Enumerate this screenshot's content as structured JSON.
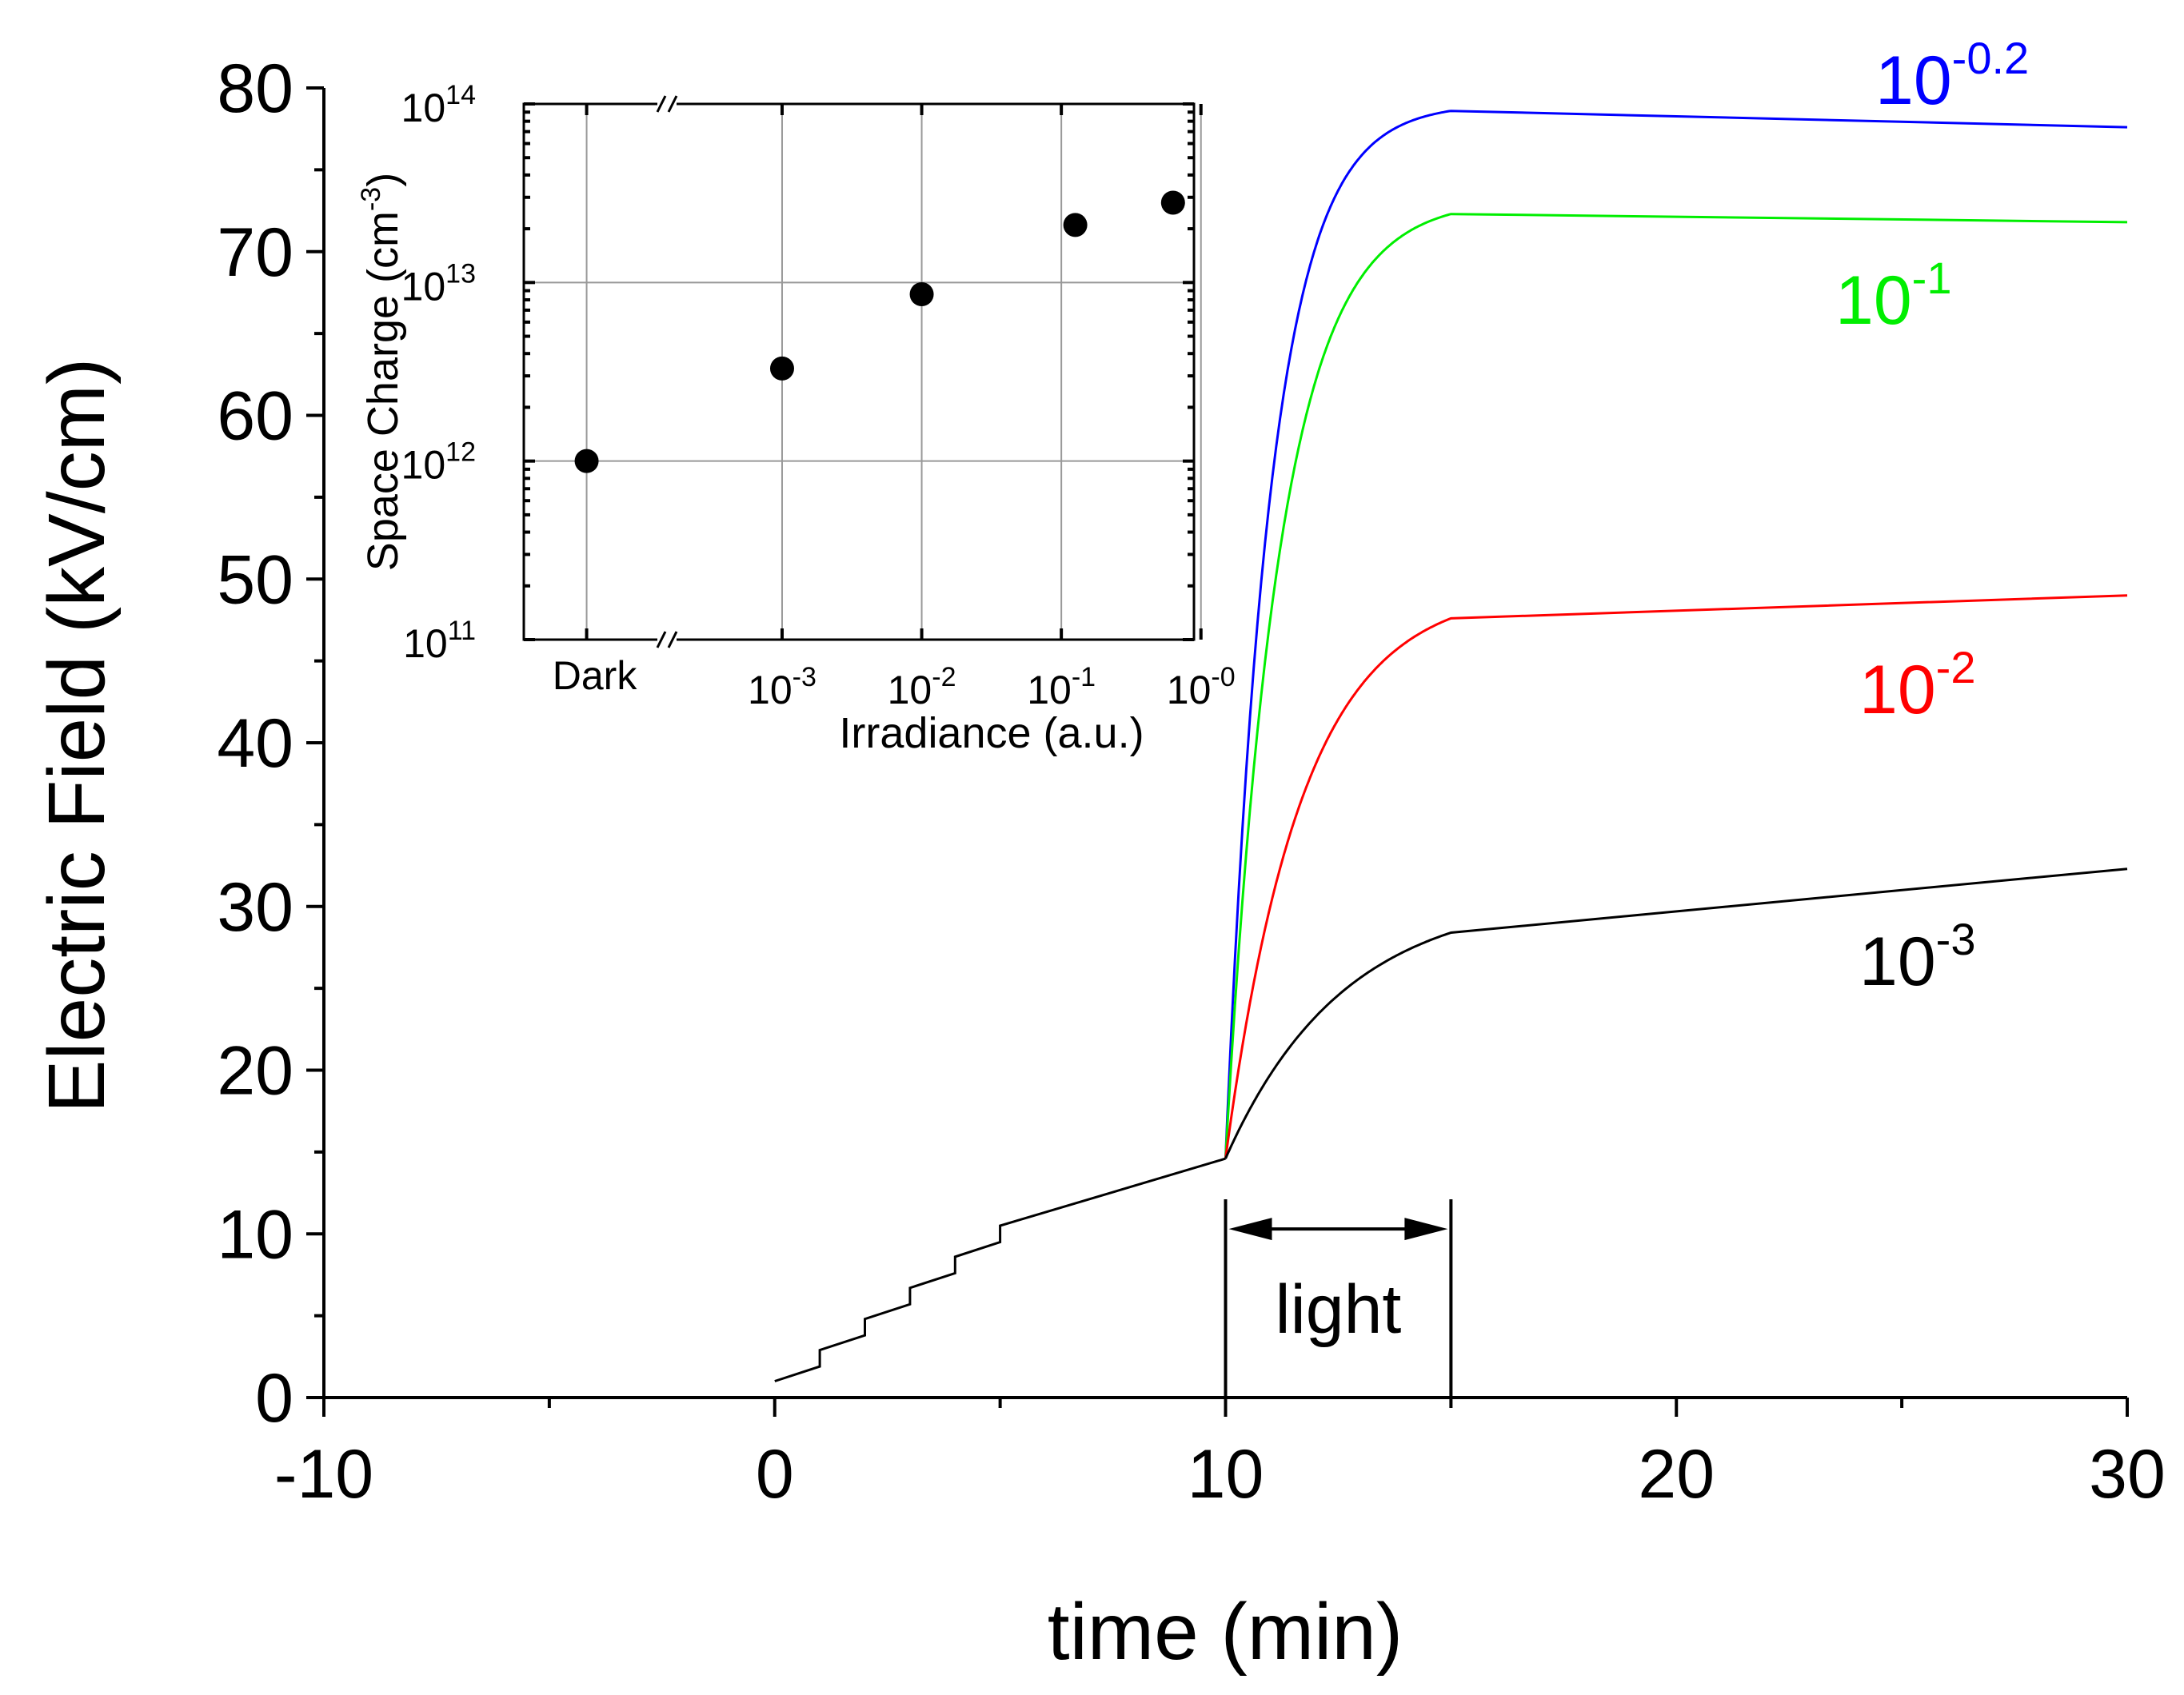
{
  "chart_data": [
    {
      "type": "line",
      "xlabel": "time (min)",
      "ylabel": "Electric Field  (kV/cm)",
      "xlim": [
        -10,
        30
      ],
      "ylim": [
        0,
        80
      ],
      "x_ticks": [
        "-10",
        "0",
        "10",
        "20",
        "30"
      ],
      "y_ticks": [
        "0",
        "10",
        "20",
        "30",
        "40",
        "50",
        "60",
        "70",
        "80"
      ],
      "dark_ramp": {
        "color": "#000000",
        "points": [
          [
            0,
            1.0
          ],
          [
            1,
            1.9
          ],
          [
            1,
            2.9
          ],
          [
            2,
            3.8
          ],
          [
            2,
            4.8
          ],
          [
            3,
            5.7
          ],
          [
            3,
            6.7
          ],
          [
            4,
            7.6
          ],
          [
            4,
            8.6
          ],
          [
            5,
            9.5
          ],
          [
            5,
            10.5
          ],
          [
            10,
            14.6
          ]
        ]
      },
      "series": [
        {
          "name": "10",
          "exponent": "-0.2",
          "color": "#0000ff",
          "light_on": {
            "x0": 10,
            "x1": 15,
            "y0": 14.6,
            "y1": 78.6,
            "tau": 1.0
          },
          "recovery_end": {
            "x": 30,
            "y": 77.6
          }
        },
        {
          "name": "10",
          "exponent": "-1",
          "color": "#00ee00",
          "light_on": {
            "x0": 10,
            "x1": 15,
            "y0": 14.6,
            "y1": 72.3,
            "tau": 1.2
          },
          "recovery_end": {
            "x": 30,
            "y": 71.8
          }
        },
        {
          "name": "10",
          "exponent": "-2",
          "color": "#ff0000",
          "light_on": {
            "x0": 10,
            "x1": 15,
            "y0": 14.6,
            "y1": 47.6,
            "tau": 1.7
          },
          "recovery_end": {
            "x": 30,
            "y": 49.0
          }
        },
        {
          "name": "10",
          "exponent": "-3",
          "color": "#000000",
          "light_on": {
            "x0": 10,
            "x1": 15,
            "y0": 14.6,
            "y1": 28.4,
            "tau": 2.6
          },
          "recovery_end": {
            "x": 30,
            "y": 32.3
          }
        }
      ],
      "annotation": {
        "text": "light",
        "x_start": 10,
        "x_end": 15,
        "arrow_y": 10.3
      }
    },
    {
      "type": "scatter",
      "inset": true,
      "xlabel": "Irradiance  (a.u.)",
      "ylabel_main": "Space Charge  (cm",
      "ylabel_exp": "-3",
      "ylabel_close": ")",
      "yscale": "log",
      "ylim": [
        100000000000.0,
        100000000000000.0
      ],
      "y_ticks": [
        {
          "base": "10",
          "exp": "11",
          "value": 11
        },
        {
          "base": "10",
          "exp": "12",
          "value": 12
        },
        {
          "base": "10",
          "exp": "13",
          "value": 13
        },
        {
          "base": "10",
          "exp": "14",
          "value": 14
        }
      ],
      "x_categories": [
        {
          "label": "Dark",
          "pos": -4.4
        },
        {
          "base": "10",
          "exp": "-3",
          "pos": -3
        },
        {
          "base": "10",
          "exp": "-2",
          "pos": -2
        },
        {
          "base": "10",
          "exp": "-1",
          "pos": -1
        },
        {
          "base": "10",
          "exp": "-0",
          "pos": 0
        }
      ],
      "xlim_log": [
        -4.85,
        -0.05
      ],
      "points": [
        {
          "x": "Dark",
          "xpos": -4.4,
          "y": 1000000000000.0
        },
        {
          "x": "10^-3",
          "xpos": -3.0,
          "y": 3300000000000.0
        },
        {
          "x": "10^-2",
          "xpos": -2.0,
          "y": 8600000000000.0
        },
        {
          "x": "10^-1",
          "xpos": -0.9,
          "y": 21000000000000.0
        },
        {
          "x": "10^-0.2",
          "xpos": -0.2,
          "y": 28000000000000.0
        }
      ],
      "axis_break": true
    }
  ]
}
